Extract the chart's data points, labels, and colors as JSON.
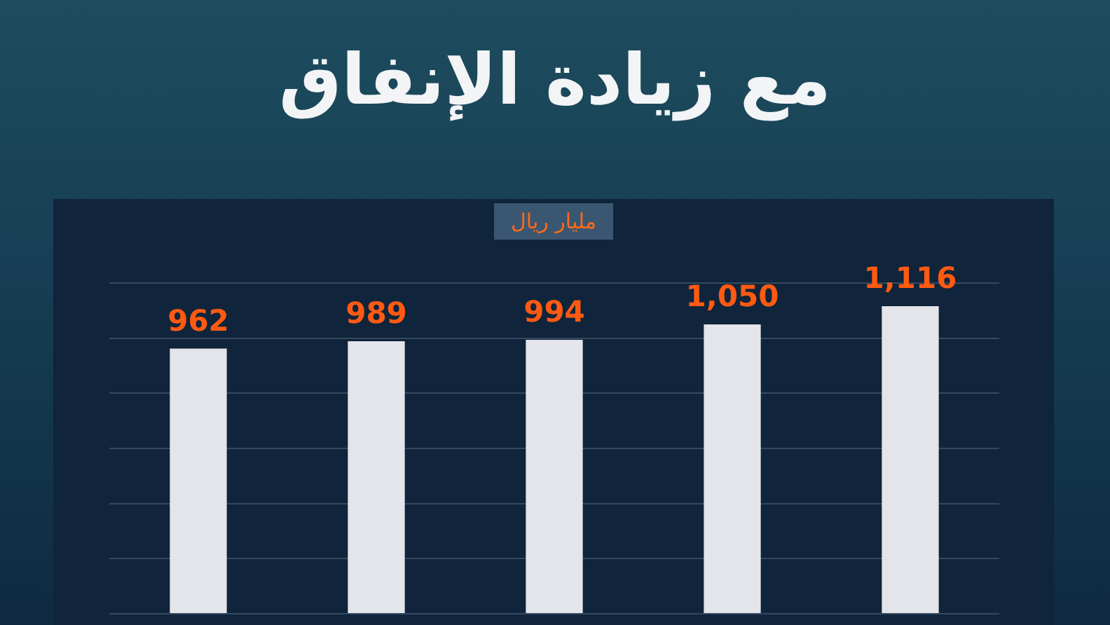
{
  "chart_data": {
    "type": "bar",
    "title": "مع زيادة الإنفاق",
    "ylabel": "مليار ريال",
    "categories": [
      null,
      null,
      null,
      null,
      null
    ],
    "values": [
      962,
      989,
      994,
      1050,
      1116
    ],
    "value_labels": [
      "962",
      "989",
      "994",
      "1,050",
      "1,116"
    ],
    "color": "#e3e5ea",
    "grid": "y"
  }
}
